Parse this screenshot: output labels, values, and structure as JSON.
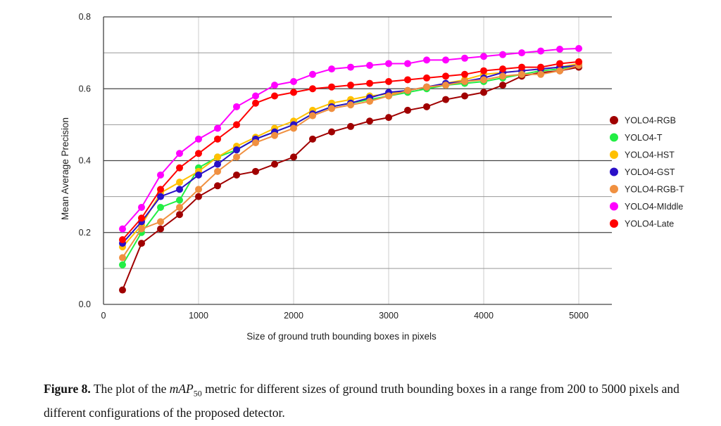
{
  "chart_data": {
    "type": "line",
    "title": "",
    "xlabel": "Size of ground truth bounding boxes in pixels",
    "ylabel": "Mean Average Precision",
    "xlim": [
      0,
      5200
    ],
    "ylim": [
      0,
      0.8
    ],
    "x_ticks": [
      "0",
      "1000",
      "2000",
      "3000",
      "4000",
      "5000"
    ],
    "y_ticks": [
      "0.0",
      "0.2",
      "0.4",
      "0.6",
      "0.8"
    ],
    "grid": true,
    "legend_position": "right",
    "x": [
      200,
      400,
      600,
      800,
      1000,
      1200,
      1400,
      1600,
      1800,
      2000,
      2200,
      2400,
      2600,
      2800,
      3000,
      3200,
      3400,
      3600,
      3800,
      4000,
      4200,
      4400,
      4600,
      4800,
      5000
    ],
    "series": [
      {
        "name": "YOLO4-RGB",
        "color": "#a00000",
        "values": [
          0.04,
          0.17,
          0.21,
          0.25,
          0.3,
          0.33,
          0.36,
          0.37,
          0.39,
          0.41,
          0.46,
          0.48,
          0.495,
          0.51,
          0.52,
          0.54,
          0.55,
          0.57,
          0.58,
          0.59,
          0.61,
          0.635,
          0.645,
          0.65,
          0.66
        ]
      },
      {
        "name": "YOLO4-T",
        "color": "#22ee44",
        "values": [
          0.11,
          0.2,
          0.27,
          0.29,
          0.38,
          0.41,
          0.43,
          0.46,
          0.48,
          0.5,
          0.53,
          0.55,
          0.56,
          0.57,
          0.58,
          0.59,
          0.6,
          0.61,
          0.615,
          0.62,
          0.63,
          0.64,
          0.65,
          0.655,
          0.665
        ]
      },
      {
        "name": "YOLO4-HST",
        "color": "#ffc000",
        "values": [
          0.16,
          0.22,
          0.31,
          0.34,
          0.37,
          0.41,
          0.44,
          0.465,
          0.49,
          0.51,
          0.54,
          0.56,
          0.57,
          0.58,
          0.585,
          0.595,
          0.605,
          0.615,
          0.625,
          0.64,
          0.645,
          0.65,
          0.655,
          0.66,
          0.67
        ]
      },
      {
        "name": "YOLO4-GST",
        "color": "#2a10c8",
        "values": [
          0.17,
          0.23,
          0.3,
          0.32,
          0.36,
          0.39,
          0.43,
          0.46,
          0.48,
          0.5,
          0.53,
          0.55,
          0.56,
          0.575,
          0.59,
          0.595,
          0.605,
          0.615,
          0.62,
          0.63,
          0.645,
          0.65,
          0.655,
          0.66,
          0.665
        ]
      },
      {
        "name": "YOLO4-RGB-T",
        "color": "#f09040",
        "values": [
          0.13,
          0.21,
          0.23,
          0.27,
          0.32,
          0.37,
          0.41,
          0.45,
          0.47,
          0.49,
          0.525,
          0.545,
          0.555,
          0.565,
          0.58,
          0.595,
          0.605,
          0.61,
          0.62,
          0.625,
          0.635,
          0.64,
          0.64,
          0.65,
          0.665
        ]
      },
      {
        "name": "YOLO4-MIddle",
        "color": "#ff00ff",
        "values": [
          0.21,
          0.27,
          0.36,
          0.42,
          0.46,
          0.49,
          0.55,
          0.58,
          0.61,
          0.62,
          0.64,
          0.655,
          0.66,
          0.665,
          0.67,
          0.67,
          0.68,
          0.68,
          0.685,
          0.69,
          0.695,
          0.7,
          0.705,
          0.71,
          0.712
        ]
      },
      {
        "name": "YOLO4-Late",
        "color": "#ff0000",
        "values": [
          0.18,
          0.24,
          0.32,
          0.38,
          0.42,
          0.46,
          0.5,
          0.56,
          0.58,
          0.59,
          0.6,
          0.605,
          0.61,
          0.615,
          0.62,
          0.625,
          0.63,
          0.635,
          0.64,
          0.65,
          0.655,
          0.66,
          0.66,
          0.67,
          0.675
        ]
      }
    ]
  },
  "caption": {
    "label": "Figure 8.",
    "text_before": " The plot of the ",
    "metric": "mAP",
    "metric_sub": "50",
    "text_after": " metric for different sizes of ground truth bounding boxes in a range from 200 to 5000 pixels and different configurations of the proposed detector."
  }
}
